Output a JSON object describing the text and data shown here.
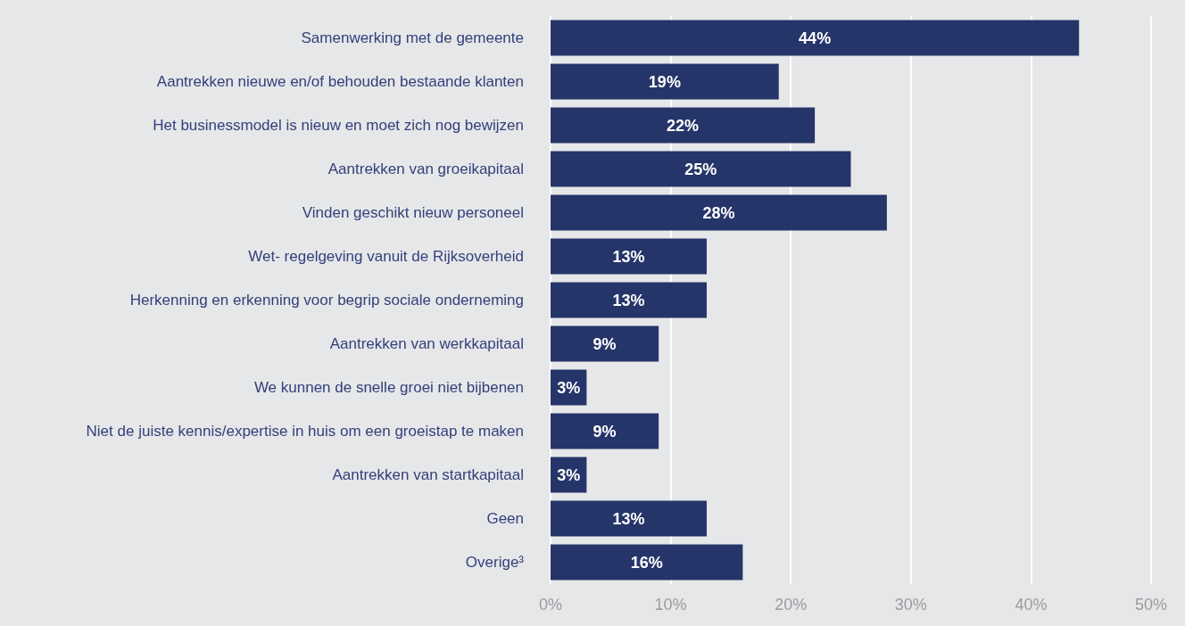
{
  "chart_data": {
    "type": "bar",
    "orientation": "horizontal",
    "categories": [
      "Samenwerking met de gemeente",
      "Aantrekken nieuwe en/of behouden bestaande klanten",
      "Het businessmodel is nieuw en moet zich nog bewijzen",
      "Aantrekken van groeikapitaal",
      "Vinden geschikt nieuw personeel",
      "Wet- regelgeving vanuit de Rijksoverheid",
      "Herkenning en erkenning voor begrip sociale onderneming",
      "Aantrekken van werkkapitaal",
      "We kunnen de snelle groei niet bijbenen",
      "Niet de juiste kennis/expertise in huis om een groeistap te maken",
      "Aantrekken van startkapitaal",
      "Geen",
      "Overige³"
    ],
    "values": [
      44,
      19,
      22,
      25,
      28,
      13,
      13,
      9,
      3,
      9,
      3,
      13,
      16
    ],
    "value_labels": [
      "44%",
      "19%",
      "22%",
      "25%",
      "28%",
      "13%",
      "13%",
      "9%",
      "3%",
      "9%",
      "3%",
      "13%",
      "16%"
    ],
    "color": "#253569",
    "xlim": [
      0,
      50
    ],
    "xticks": [
      {
        "value": 0,
        "label": "0%"
      },
      {
        "value": 10,
        "label": "10%"
      },
      {
        "value": 20,
        "label": "20%"
      },
      {
        "value": 30,
        "label": "30%"
      },
      {
        "value": 40,
        "label": "40%"
      },
      {
        "value": 50,
        "label": "50%"
      }
    ],
    "grid": "x"
  }
}
